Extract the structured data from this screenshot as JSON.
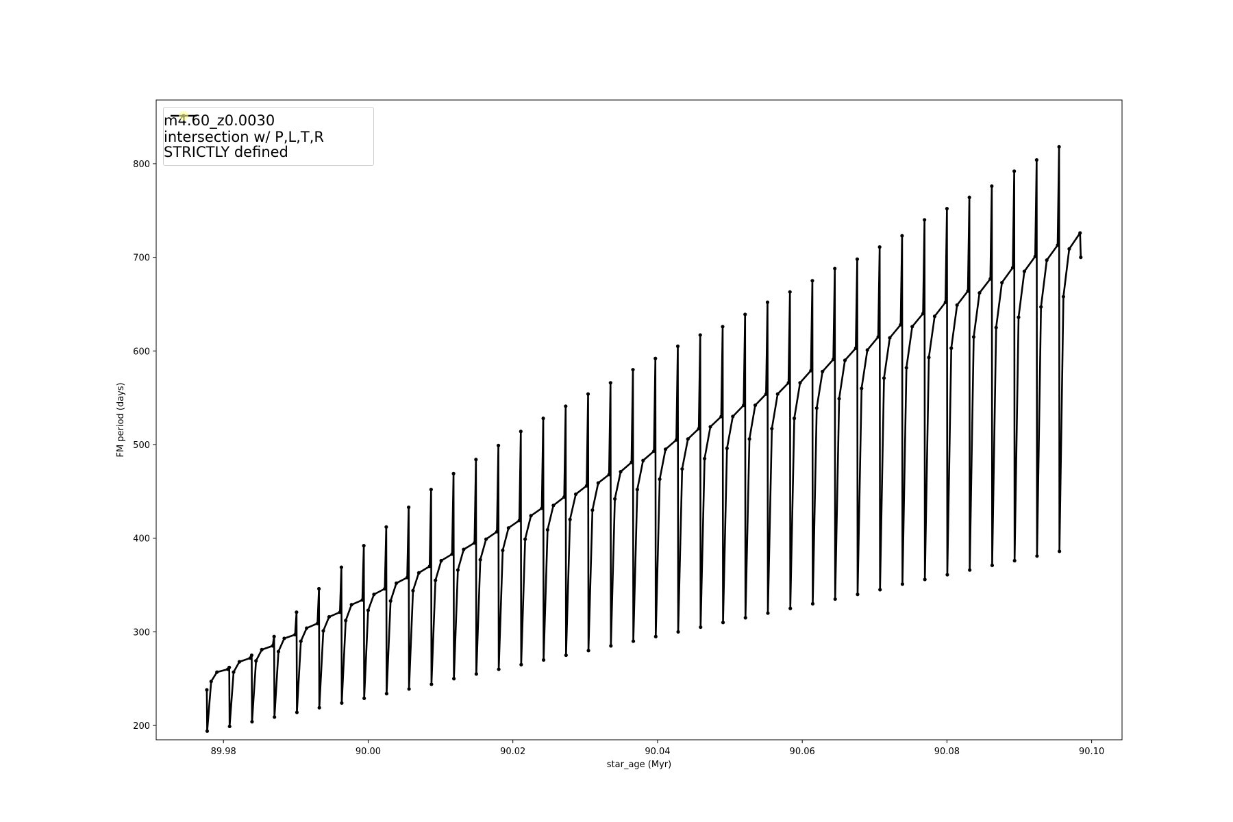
{
  "chart_data": {
    "type": "line",
    "xlabel": "star_age (Myr)",
    "ylabel": "FM period (days)",
    "xlim": [
      89.9707,
      90.1042
    ],
    "ylim": [
      184.7,
      868
    ],
    "xticks": [
      89.98,
      {
        "value": 90,
        "label": "90.00"
      },
      90.02,
      90.04,
      90.06,
      90.08,
      {
        "value": 90.1,
        "label": "90.10"
      }
    ],
    "yticks": [
      200,
      300,
      400,
      500,
      600,
      700,
      800
    ],
    "grid": false,
    "legend": "upper left",
    "series": [
      {
        "name": "m4.60_z0.0030",
        "color": "#000000",
        "marker": true,
        "x": [
          89.9777,
          89.97775,
          89.9783,
          89.9791,
          89.9806,
          89.9808,
          89.98085,
          89.9814,
          89.9822,
          89.9837,
          89.9839,
          89.98395,
          89.9845,
          89.9853,
          89.9868,
          89.987,
          89.98705,
          89.9876,
          89.9884,
          89.9899,
          89.9901,
          89.99015,
          89.9907,
          89.9915,
          89.993,
          89.9932,
          89.99325,
          89.9938,
          89.9946,
          89.9961,
          89.9963,
          89.99635,
          89.9969,
          89.9977,
          89.9992,
          89.9994,
          89.99945,
          90.0,
          90.0008,
          90.0023,
          90.0025,
          90.00255,
          90.0031,
          90.0039,
          90.0054,
          90.0056,
          90.00565,
          90.0062,
          90.007,
          90.0085,
          90.0087,
          90.00875,
          90.0093,
          90.0101,
          90.0116,
          90.0118,
          90.01185,
          90.0124,
          90.0132,
          90.0147,
          90.0149,
          90.01495,
          90.0155,
          90.0163,
          90.0178,
          90.018,
          90.01805,
          90.0186,
          90.0194,
          90.0209,
          90.0211,
          90.02115,
          90.0217,
          90.0225,
          90.024,
          90.0242,
          90.02425,
          90.0248,
          90.0256,
          90.0271,
          90.0273,
          90.02735,
          90.0279,
          90.0287,
          90.0302,
          90.0304,
          90.03045,
          90.031,
          90.0318,
          90.0333,
          90.0335,
          90.03355,
          90.0341,
          90.0349,
          90.0364,
          90.0366,
          90.03665,
          90.0372,
          90.038,
          90.0395,
          90.0397,
          90.03975,
          90.0403,
          90.0411,
          90.0426,
          90.0428,
          90.04285,
          90.0434,
          90.0442,
          90.0457,
          90.0459,
          90.04595,
          90.0465,
          90.0473,
          90.0488,
          90.049,
          90.04905,
          90.0496,
          90.0504,
          90.0519,
          90.0521,
          90.05215,
          90.0527,
          90.0535,
          90.055,
          90.0552,
          90.05525,
          90.0558,
          90.0566,
          90.0581,
          90.0583,
          90.05835,
          90.0589,
          90.0597,
          90.0612,
          90.0614,
          90.06145,
          90.062,
          90.0628,
          90.0643,
          90.0645,
          90.06455,
          90.0651,
          90.0659,
          90.0674,
          90.0676,
          90.06765,
          90.0682,
          90.069,
          90.0705,
          90.0707,
          90.07075,
          90.0713,
          90.0721,
          90.0736,
          90.0738,
          90.07385,
          90.0744,
          90.0752,
          90.0767,
          90.0769,
          90.07695,
          90.0775,
          90.0783,
          90.0798,
          90.08,
          90.08005,
          90.0806,
          90.0814,
          90.0829,
          90.0831,
          90.08315,
          90.0837,
          90.0845,
          90.086,
          90.0862,
          90.08625,
          90.0868,
          90.0876,
          90.0891,
          90.0893,
          90.08935,
          90.0899,
          90.0907,
          90.0922,
          90.0924,
          90.09245,
          90.093,
          90.0938,
          90.0953,
          90.0955,
          90.09555,
          90.0961,
          90.0969,
          90.0984,
          90.0985
        ],
        "values": [
          238,
          194,
          247,
          257,
          260,
          262,
          199,
          257,
          268,
          272,
          275,
          204,
          269,
          281,
          285,
          295,
          209,
          279,
          293,
          297,
          321,
          214,
          290,
          304,
          309,
          346,
          219,
          301,
          316,
          321,
          369,
          224,
          312,
          329,
          334,
          392,
          229,
          323,
          340,
          346,
          412,
          234,
          333,
          352,
          358,
          433,
          239,
          344,
          363,
          370,
          452,
          244,
          355,
          376,
          383,
          469,
          250,
          366,
          388,
          395,
          484,
          255,
          377,
          399,
          407,
          499,
          260,
          387,
          411,
          419,
          514,
          265,
          399,
          424,
          432,
          528,
          270,
          409,
          435,
          444,
          541,
          275,
          420,
          447,
          456,
          554,
          280,
          430,
          459,
          468,
          566,
          285,
          442,
          471,
          481,
          580,
          290,
          452,
          483,
          493,
          592,
          295,
          463,
          495,
          505,
          605,
          300,
          474,
          506,
          517,
          617,
          305,
          485,
          519,
          530,
          626,
          310,
          496,
          530,
          542,
          639,
          315,
          506,
          542,
          554,
          652,
          320,
          517,
          554,
          566,
          663,
          325,
          528,
          566,
          579,
          675,
          330,
          539,
          578,
          591,
          688,
          335,
          549,
          590,
          603,
          698,
          340,
          560,
          601,
          615,
          711,
          345,
          571,
          614,
          628,
          723,
          351,
          582,
          626,
          640,
          740,
          356,
          593,
          637,
          652,
          752,
          361,
          603,
          649,
          664,
          764,
          366,
          615,
          662,
          677,
          776,
          371,
          625,
          673,
          689,
          792,
          376,
          636,
          685,
          701,
          804,
          381,
          647,
          697,
          713,
          818,
          386,
          658,
          709,
          726,
          700
        ]
      },
      {
        "name": "intersection w/ P,L,T,R\nSTRICTLY defined",
        "color": "#ffff99",
        "type": "scatter",
        "x": [],
        "values": []
      }
    ]
  }
}
